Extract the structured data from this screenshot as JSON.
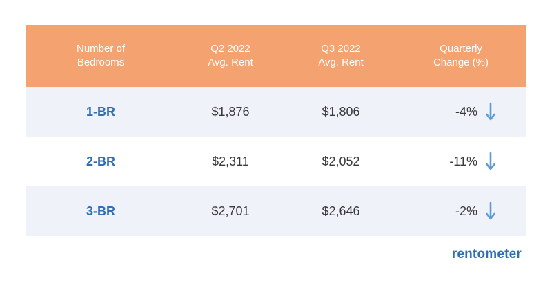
{
  "chart_data": {
    "type": "table",
    "columns": [
      [
        "Number of",
        "Bedrooms"
      ],
      [
        "Q2 2022",
        "Avg. Rent"
      ],
      [
        "Q3 2022",
        "Avg. Rent"
      ],
      [
        "Quarterly",
        "Change (%)"
      ]
    ],
    "rows": [
      {
        "bedrooms": "1-BR",
        "q2": "$1,876",
        "q3": "$1,806",
        "change": "-4%",
        "direction": "down"
      },
      {
        "bedrooms": "2-BR",
        "q2": "$2,311",
        "q3": "$2,052",
        "change": "-11%",
        "direction": "down"
      },
      {
        "bedrooms": "3-BR",
        "q2": "$2,701",
        "q3": "$2,646",
        "change": "-2%",
        "direction": "down"
      }
    ]
  },
  "colors": {
    "header_bg": "#f4a26f",
    "row_shade": "#eff2f8",
    "accent_blue": "#2f6fb5",
    "arrow_blue": "#5b9bd8"
  },
  "logo": {
    "text": "rentometer"
  }
}
